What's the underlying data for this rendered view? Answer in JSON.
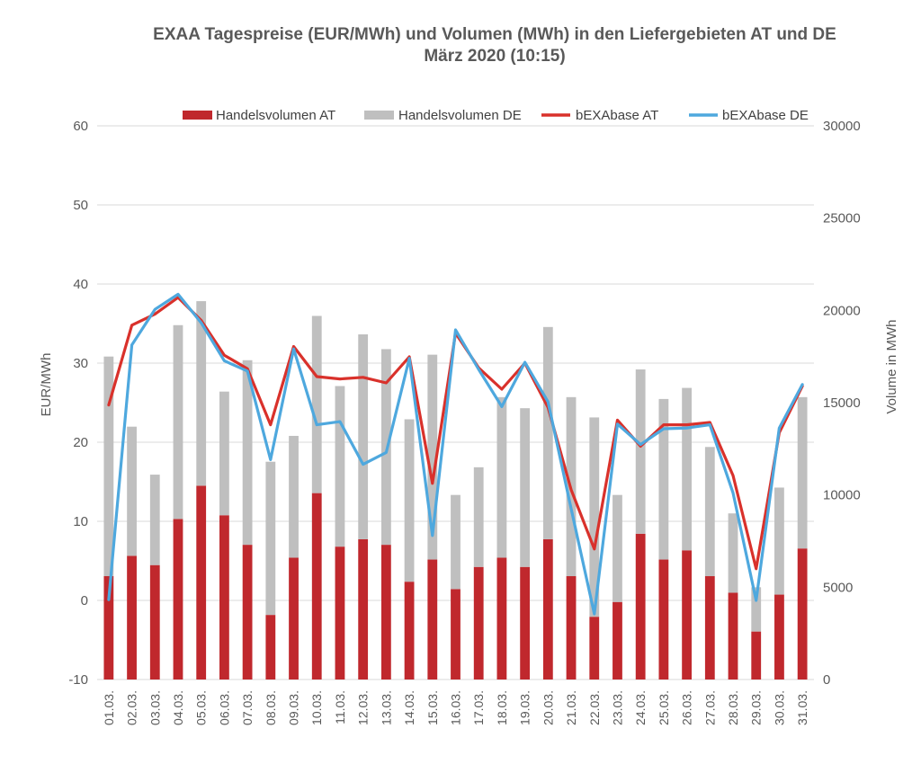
{
  "chart_data": {
    "type": "bar",
    "title": "EXAA Tagespreise  (EUR/MWh) und Volumen  (MWh) in den Liefergebieten  AT und DE",
    "subtitle": "März 2020 (10:15)",
    "ylabel_left": "EUR/MWh",
    "ylabel_right": "Volume in MWh",
    "ylim_left": [
      -10,
      60
    ],
    "ylim_right": [
      0,
      30000
    ],
    "yticks_left": [
      "-10",
      "0",
      "10",
      "20",
      "30",
      "40",
      "50",
      "60"
    ],
    "yticks_right": [
      "0",
      "5000",
      "10000",
      "15000",
      "20000",
      "25000",
      "30000"
    ],
    "categories": [
      "01.03.",
      "02.03.",
      "03.03.",
      "04.03.",
      "05.03.",
      "06.03.",
      "07.03.",
      "08.03.",
      "09.03.",
      "10.03.",
      "11.03.",
      "12.03.",
      "13.03.",
      "14.03.",
      "15.03.",
      "16.03.",
      "17.03.",
      "18.03.",
      "19.03.",
      "20.03.",
      "21.03.",
      "22.03.",
      "23.03.",
      "24.03.",
      "25.03.",
      "26.03.",
      "27.03.",
      "28.03.",
      "29.03.",
      "30.03.",
      "31.03."
    ],
    "bar_series": [
      {
        "name": "Handelsvolumen AT",
        "color": "#c0282d",
        "axis": "right",
        "values": [
          5600,
          6700,
          6200,
          8700,
          10500,
          8900,
          7300,
          3500,
          6600,
          10100,
          7200,
          7600,
          7300,
          5300,
          6500,
          4900,
          6100,
          6600,
          6100,
          7600,
          5600,
          3400,
          4200,
          7900,
          6500,
          7000,
          5600,
          4700,
          2600,
          4600,
          7100
        ]
      },
      {
        "name": "Handelsvolumen DE",
        "color": "#bfbfbf",
        "axis": "right",
        "values": [
          11900,
          7000,
          4900,
          10500,
          10000,
          6700,
          10000,
          8300,
          6600,
          9600,
          8700,
          11100,
          10600,
          8800,
          11100,
          5100,
          5400,
          8700,
          8600,
          11500,
          9700,
          10800,
          5800,
          8900,
          8700,
          8800,
          7000,
          4300,
          2400,
          5800,
          8200
        ]
      }
    ],
    "line_series": [
      {
        "name": "bEXAbase AT",
        "color": "#d9312b",
        "axis": "left",
        "values": [
          24.7,
          34.8,
          36.2,
          38.3,
          35.4,
          31.0,
          29.3,
          22.2,
          32.1,
          28.3,
          28.0,
          28.2,
          27.5,
          30.8,
          14.8,
          33.8,
          29.4,
          26.7,
          30.0,
          24.4,
          14.0,
          6.5,
          22.8,
          19.5,
          22.2,
          22.2,
          22.5,
          15.8,
          4.0,
          21.2,
          27.1
        ]
      },
      {
        "name": "bEXAbase DE",
        "color": "#4ea8de",
        "axis": "left",
        "values": [
          0.1,
          32.3,
          36.8,
          38.7,
          35.1,
          30.3,
          29.0,
          17.8,
          31.8,
          22.2,
          22.6,
          17.2,
          18.7,
          30.6,
          8.2,
          34.2,
          29.2,
          24.5,
          30.1,
          25.1,
          11.6,
          -1.7,
          22.3,
          19.7,
          21.7,
          21.8,
          22.2,
          13.6,
          0.0,
          21.8,
          27.3
        ]
      }
    ],
    "legend": [
      "Handelsvolumen AT",
      "Handelsvolumen DE",
      "bEXAbase AT",
      "bEXAbase DE"
    ],
    "legend_position": "top-right",
    "grid": true
  }
}
